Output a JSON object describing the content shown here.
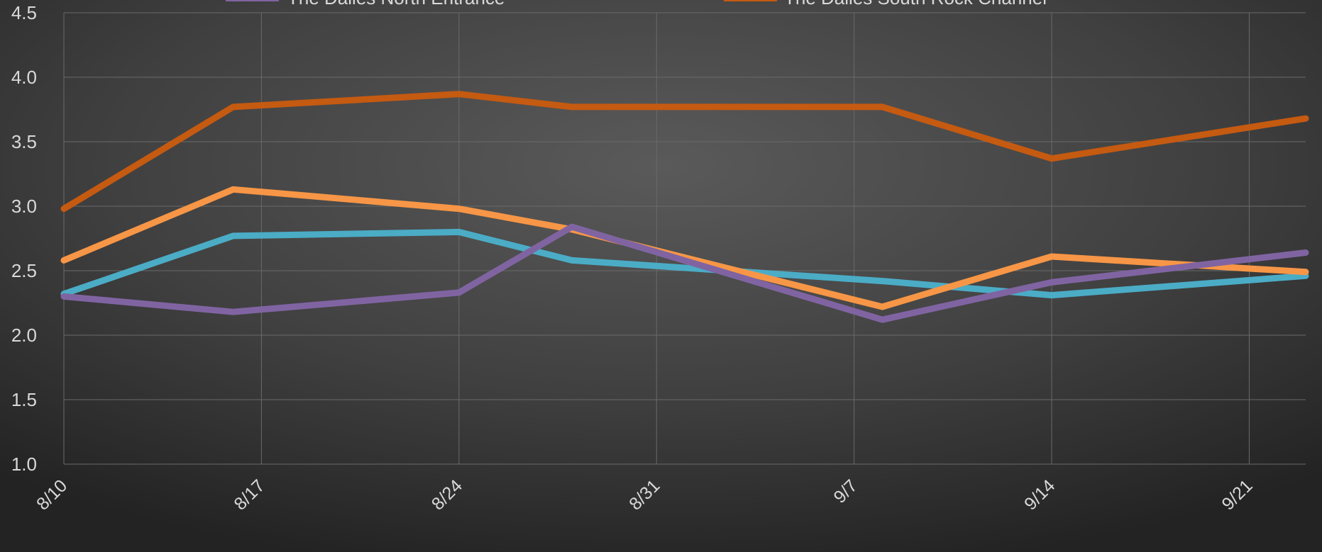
{
  "chart_data": {
    "type": "line",
    "title": "",
    "xlabel": "",
    "ylabel": "",
    "ylim": [
      1.0,
      4.5
    ],
    "yticks": [
      "1.0",
      "1.5",
      "2.0",
      "2.5",
      "3.0",
      "3.5",
      "4.0",
      "4.5"
    ],
    "xlim": [
      "8/10",
      "9/23"
    ],
    "xticks": [
      {
        "label": "8/10",
        "date": "8/10"
      },
      {
        "label": "8/17",
        "date": "8/17"
      },
      {
        "label": "8/24",
        "date": "8/24"
      },
      {
        "label": "8/31",
        "date": "8/31"
      },
      {
        "label": "9/7",
        "date": "9/7"
      },
      {
        "label": "9/14",
        "date": "9/14"
      },
      {
        "label": "9/21",
        "date": "9/21"
      }
    ],
    "grid": true,
    "legend": "top",
    "background": "dark radial gradient",
    "series": [
      {
        "name": "",
        "color": "#4bacc6",
        "points": [
          {
            "x": "8/10",
            "y": 2.32
          },
          {
            "x": "8/16",
            "y": 2.77
          },
          {
            "x": "8/24",
            "y": 2.8
          },
          {
            "x": "8/28",
            "y": 2.58
          },
          {
            "x": "9/8",
            "y": 2.42
          },
          {
            "x": "9/14",
            "y": 2.31
          },
          {
            "x": "9/23",
            "y": 2.46
          }
        ]
      },
      {
        "name": "",
        "color": "#f79646",
        "points": [
          {
            "x": "8/10",
            "y": 2.58
          },
          {
            "x": "8/16",
            "y": 3.13
          },
          {
            "x": "8/24",
            "y": 2.98
          },
          {
            "x": "8/28",
            "y": 2.82
          },
          {
            "x": "9/8",
            "y": 2.22
          },
          {
            "x": "9/14",
            "y": 2.61
          },
          {
            "x": "9/23",
            "y": 2.49
          }
        ]
      },
      {
        "name": "The Dalles North Entrance",
        "color": "#8064a2",
        "points": [
          {
            "x": "8/10",
            "y": 2.3
          },
          {
            "x": "8/16",
            "y": 2.18
          },
          {
            "x": "8/24",
            "y": 2.33
          },
          {
            "x": "8/28",
            "y": 2.84
          },
          {
            "x": "9/8",
            "y": 2.12
          },
          {
            "x": "9/14",
            "y": 2.41
          },
          {
            "x": "9/23",
            "y": 2.64
          }
        ]
      },
      {
        "name": "The Dalles South Rock Channel",
        "color": "#c55a11",
        "points": [
          {
            "x": "8/10",
            "y": 2.98
          },
          {
            "x": "8/16",
            "y": 3.77
          },
          {
            "x": "8/24",
            "y": 3.87
          },
          {
            "x": "8/28",
            "y": 3.77
          },
          {
            "x": "9/8",
            "y": 3.77
          },
          {
            "x": "9/14",
            "y": 3.37
          },
          {
            "x": "9/23",
            "y": 3.68
          }
        ]
      }
    ]
  },
  "legend": {
    "items": [
      {
        "label": "The Dalles North Entrance",
        "color": "#8064a2"
      },
      {
        "label": "The Dalles South Rock Channel",
        "color": "#c55a11"
      }
    ]
  }
}
